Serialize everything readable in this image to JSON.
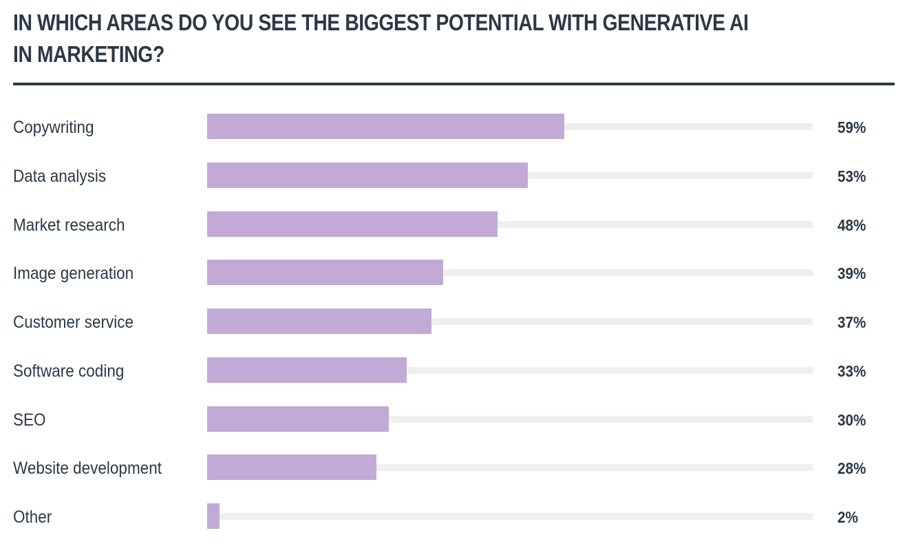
{
  "chart_data": {
    "type": "bar",
    "orientation": "horizontal",
    "title": "IN WHICH AREAS DO YOU SEE THE BIGGEST POTENTIAL WITH GENERATIVE AI IN MARKETING?",
    "xlabel": "",
    "ylabel": "",
    "xlim": [
      0,
      100
    ],
    "grid": false,
    "legend": null,
    "categories": [
      "Copywriting",
      "Data analysis",
      "Market research",
      "Image generation",
      "Customer service",
      "Software coding",
      "SEO",
      "Website development",
      "Other"
    ],
    "values": [
      59,
      53,
      48,
      39,
      37,
      33,
      30,
      28,
      2
    ],
    "value_labels": [
      "59%",
      "53%",
      "48%",
      "39%",
      "37%",
      "33%",
      "30%",
      "28%",
      "2%"
    ],
    "colors": {
      "bar": "#c1aad6",
      "track": "#efefef",
      "text": "#2b3846"
    }
  }
}
